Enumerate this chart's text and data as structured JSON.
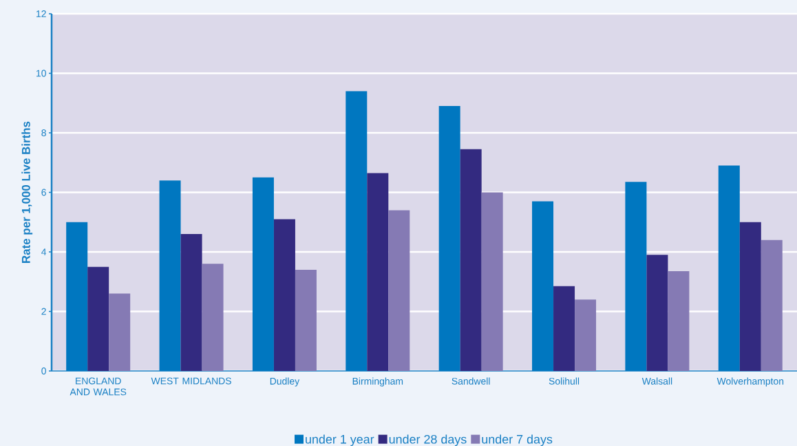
{
  "chart_data": {
    "type": "bar",
    "ylabel": "Rate per 1,000 Live Births",
    "categories": [
      "ENGLAND AND WALES",
      "WEST MIDLANDS",
      "Dudley",
      "Birmingham",
      "Sandwell",
      "Solihull",
      "Walsall",
      "Wolverhampton"
    ],
    "series": [
      {
        "name": "under 1 year",
        "color": "#0077c0",
        "values": [
          5.0,
          6.4,
          6.5,
          9.4,
          8.9,
          5.7,
          6.35,
          6.9
        ]
      },
      {
        "name": "under 28 days",
        "color": "#332a80",
        "values": [
          3.5,
          4.6,
          5.1,
          6.65,
          7.45,
          2.85,
          3.9,
          5.0
        ]
      },
      {
        "name": "under 7 days",
        "color": "#857ab4",
        "values": [
          2.6,
          3.6,
          3.4,
          5.4,
          6.0,
          2.4,
          3.35,
          4.4
        ]
      }
    ],
    "ylim": [
      0,
      12
    ],
    "yticks": [
      0,
      2,
      4,
      6,
      8,
      10,
      12
    ],
    "grid": "y",
    "legend": "bottom"
  }
}
